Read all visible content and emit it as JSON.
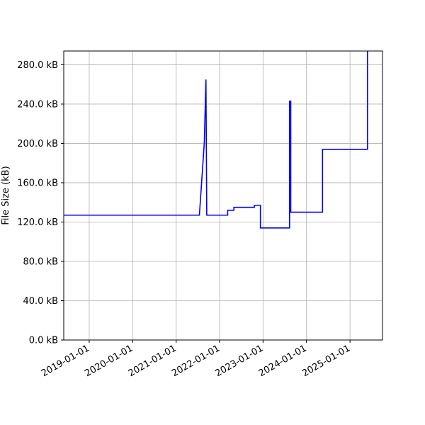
{
  "chart_data": {
    "type": "line",
    "title": "",
    "xlabel": "",
    "ylabel": "File Size (kB)",
    "x_type": "date",
    "xlim": [
      "2018-06-01",
      "2025-10-01"
    ],
    "ylim": [
      0,
      294
    ],
    "grid": true,
    "legend": "none",
    "line_color": "#0000ff",
    "x_ticks": [
      {
        "value": "2019-01-01",
        "label": "2019-01-01"
      },
      {
        "value": "2020-01-01",
        "label": "2020-01-01"
      },
      {
        "value": "2021-01-01",
        "label": "2021-01-01"
      },
      {
        "value": "2022-01-01",
        "label": "2022-01-01"
      },
      {
        "value": "2023-01-01",
        "label": "2023-01-01"
      },
      {
        "value": "2024-01-01",
        "label": "2024-01-01"
      },
      {
        "value": "2025-01-01",
        "label": "2025-01-01"
      }
    ],
    "y_ticks": [
      {
        "value": 0,
        "label": "0.0 kB"
      },
      {
        "value": 40,
        "label": "40.0 kB"
      },
      {
        "value": 80,
        "label": "80.0 kB"
      },
      {
        "value": 120,
        "label": "120.0 kB"
      },
      {
        "value": 160,
        "label": "160.0 kB"
      },
      {
        "value": 200,
        "label": "200.0 kB"
      },
      {
        "value": 240,
        "label": "240.0 kB"
      },
      {
        "value": 280,
        "label": "280.0 kB"
      }
    ],
    "series": [
      {
        "points": [
          {
            "x": "2018-06-01",
            "y": 127
          },
          {
            "x": "2021-07-15",
            "y": 127
          },
          {
            "x": "2021-08-25",
            "y": 200
          },
          {
            "x": "2021-09-08",
            "y": 265
          },
          {
            "x": "2021-09-15",
            "y": 127
          },
          {
            "x": "2022-03-10",
            "y": 127
          },
          {
            "x": "2022-03-10",
            "y": 132
          },
          {
            "x": "2022-05-01",
            "y": 132
          },
          {
            "x": "2022-05-01",
            "y": 135
          },
          {
            "x": "2022-10-20",
            "y": 135
          },
          {
            "x": "2022-10-20",
            "y": 137
          },
          {
            "x": "2022-12-10",
            "y": 137
          },
          {
            "x": "2022-12-10",
            "y": 114
          },
          {
            "x": "2023-08-12",
            "y": 114
          },
          {
            "x": "2023-08-12",
            "y": 243
          },
          {
            "x": "2023-08-22",
            "y": 243
          },
          {
            "x": "2023-08-22",
            "y": 130
          },
          {
            "x": "2024-05-15",
            "y": 130
          },
          {
            "x": "2024-05-15",
            "y": 194
          },
          {
            "x": "2025-05-28",
            "y": 194
          },
          {
            "x": "2025-05-28",
            "y": 294
          }
        ]
      }
    ]
  }
}
